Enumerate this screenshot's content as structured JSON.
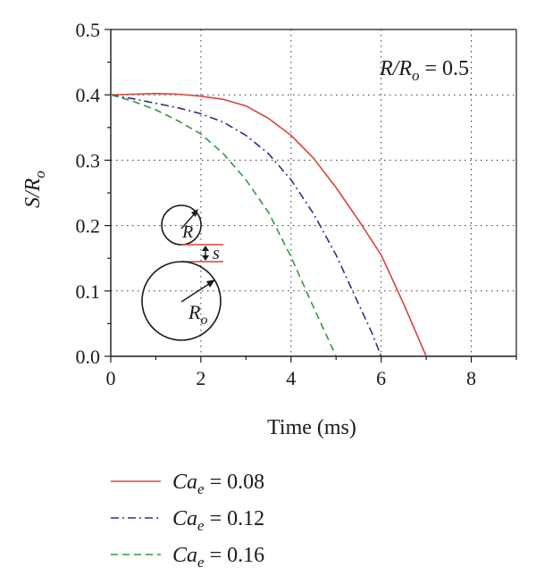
{
  "chart_data": {
    "type": "line",
    "xlabel": "Time (ms)",
    "ylabel": {
      "main": "S/R",
      "sub": "o"
    },
    "xlim": [
      0,
      9
    ],
    "ylim": [
      0,
      0.5
    ],
    "x_ticks": [
      "0",
      "2",
      "4",
      "6",
      "8"
    ],
    "y_ticks": [
      "0.0",
      "0.1",
      "0.2",
      "0.3",
      "0.4",
      "0.5"
    ],
    "grid": "dotted",
    "annotation": {
      "main": "R/R",
      "sub": "o",
      "rest": " = 0.5"
    },
    "inset": {
      "small_label": "R",
      "gap_label": "s",
      "large_label": {
        "main": "R",
        "sub": "o"
      }
    },
    "legend_position": "below",
    "series": [
      {
        "name": {
          "main": "Ca",
          "sub": "e",
          "rest": " = 0.08"
        },
        "color": "#d9433a",
        "dash": "solid",
        "x": [
          0,
          0.5,
          1,
          1.5,
          2,
          2.5,
          3,
          3.5,
          4,
          4.5,
          5,
          5.5,
          6,
          6.5,
          7
        ],
        "y": [
          0.4,
          0.401,
          0.402,
          0.401,
          0.398,
          0.393,
          0.383,
          0.364,
          0.338,
          0.303,
          0.258,
          0.208,
          0.155,
          0.08,
          0.0
        ]
      },
      {
        "name": {
          "main": "Ca",
          "sub": "e",
          "rest": " = 0.12"
        },
        "color": "#2b2f8f",
        "dash": "dashdot",
        "x": [
          0,
          0.5,
          1,
          1.5,
          2,
          2.5,
          3,
          3.5,
          4,
          4.5,
          5,
          5.5,
          5.8,
          6
        ],
        "y": [
          0.4,
          0.394,
          0.387,
          0.38,
          0.371,
          0.358,
          0.338,
          0.31,
          0.27,
          0.218,
          0.155,
          0.08,
          0.035,
          0.0
        ]
      },
      {
        "name": {
          "main": "Ca",
          "sub": "e",
          "rest": " = 0.16"
        },
        "color": "#2e9a3e",
        "dash": "dashed",
        "x": [
          0,
          0.5,
          1,
          1.5,
          2,
          2.5,
          3,
          3.5,
          4,
          4.5,
          4.8,
          5
        ],
        "y": [
          0.4,
          0.39,
          0.377,
          0.36,
          0.34,
          0.31,
          0.27,
          0.22,
          0.152,
          0.075,
          0.03,
          0.0
        ]
      }
    ]
  }
}
